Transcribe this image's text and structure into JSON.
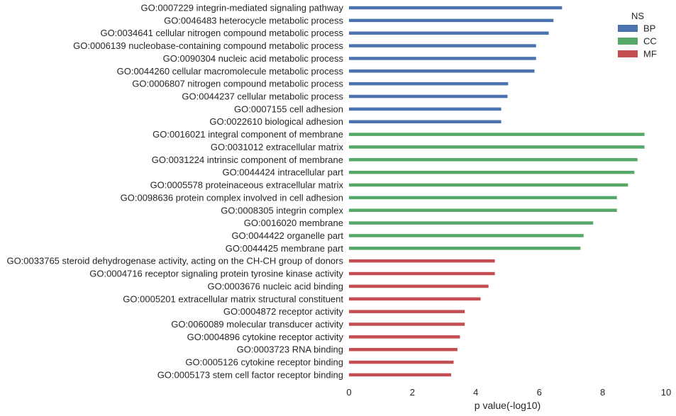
{
  "chart_data": {
    "type": "bar",
    "orientation": "horizontal",
    "xlabel": "p value(-log10)",
    "xlim": [
      0,
      10
    ],
    "xticks": [
      "0",
      "2",
      "4",
      "6",
      "8",
      "10"
    ],
    "grid": false,
    "legend": {
      "title": "NS",
      "placement": "top-right",
      "entries": [
        {
          "label": "BP",
          "color": "#4c72b0"
        },
        {
          "label": "CC",
          "color": "#55a868"
        },
        {
          "label": "MF",
          "color": "#c44e52"
        }
      ]
    },
    "categories": [
      {
        "label": "GO:0007229 integrin-mediated signaling pathway",
        "value": 6.72,
        "group": "BP"
      },
      {
        "label": "GO:0046483 heterocycle metabolic process",
        "value": 6.45,
        "group": "BP"
      },
      {
        "label": "GO:0034641 cellular nitrogen compound metabolic process",
        "value": 6.3,
        "group": "BP"
      },
      {
        "label": "GO:0006139 nucleobase-containing compound metabolic process",
        "value": 5.9,
        "group": "BP"
      },
      {
        "label": "GO:0090304 nucleic acid metabolic process",
        "value": 5.9,
        "group": "BP"
      },
      {
        "label": "GO:0044260 cellular macromolecule metabolic process",
        "value": 5.85,
        "group": "BP"
      },
      {
        "label": "GO:0006807 nitrogen compound metabolic process",
        "value": 5.02,
        "group": "BP"
      },
      {
        "label": "GO:0044237 cellular metabolic process",
        "value": 5.0,
        "group": "BP"
      },
      {
        "label": "GO:0007155 cell adhesion",
        "value": 4.8,
        "group": "BP"
      },
      {
        "label": "GO:0022610 biological adhesion",
        "value": 4.8,
        "group": "BP"
      },
      {
        "label": "GO:0016021 integral component of membrane",
        "value": 9.32,
        "group": "CC"
      },
      {
        "label": "GO:0031012 extracellular matrix",
        "value": 9.32,
        "group": "CC"
      },
      {
        "label": "GO:0031224 intrinsic component of membrane",
        "value": 9.1,
        "group": "CC"
      },
      {
        "label": "GO:0044424 intracellular part",
        "value": 9.0,
        "group": "CC"
      },
      {
        "label": "GO:0005578 proteinaceous extracellular matrix",
        "value": 8.8,
        "group": "CC"
      },
      {
        "label": "GO:0098636 protein complex involved in cell adhesion",
        "value": 8.45,
        "group": "CC"
      },
      {
        "label": "GO:0008305 integrin complex",
        "value": 8.45,
        "group": "CC"
      },
      {
        "label": "GO:0016020 membrane",
        "value": 7.7,
        "group": "CC"
      },
      {
        "label": "GO:0044422 organelle part",
        "value": 7.4,
        "group": "CC"
      },
      {
        "label": "GO:0044425 membrane part",
        "value": 7.3,
        "group": "CC"
      },
      {
        "label": "GO:0033765 steroid dehydrogenase activity, acting on the CH-CH group of donors",
        "value": 4.6,
        "group": "MF"
      },
      {
        "label": "GO:0004716 receptor signaling protein tyrosine kinase activity",
        "value": 4.6,
        "group": "MF"
      },
      {
        "label": "GO:0003676 nucleic acid binding",
        "value": 4.4,
        "group": "MF"
      },
      {
        "label": "GO:0005201 extracellular matrix structural constituent",
        "value": 4.15,
        "group": "MF"
      },
      {
        "label": "GO:0004872 receptor activity",
        "value": 3.65,
        "group": "MF"
      },
      {
        "label": "GO:0060089 molecular transducer activity",
        "value": 3.65,
        "group": "MF"
      },
      {
        "label": "GO:0004896 cytokine receptor activity",
        "value": 3.5,
        "group": "MF"
      },
      {
        "label": "GO:0003723 RNA binding",
        "value": 3.42,
        "group": "MF"
      },
      {
        "label": "GO:0005126 cytokine receptor binding",
        "value": 3.3,
        "group": "MF"
      },
      {
        "label": "GO:0005173 stem cell factor receptor binding",
        "value": 3.22,
        "group": "MF"
      }
    ]
  }
}
